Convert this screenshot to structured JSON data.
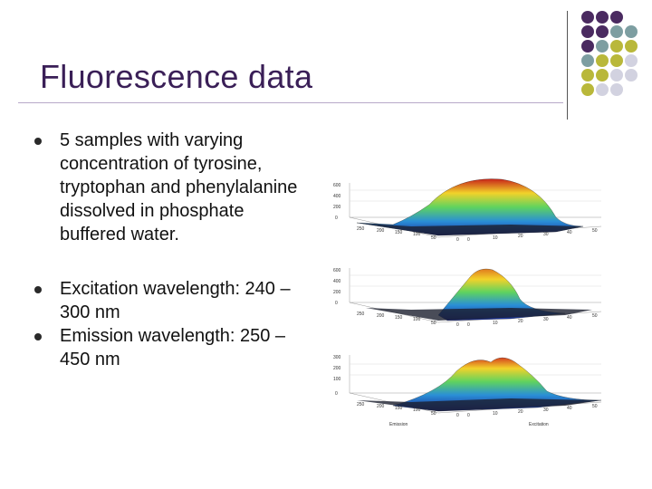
{
  "slide": {
    "title": "Fluorescence data",
    "bullets": [
      "5 samples with varying concentration of tyrosine, tryptophan and phenylalanine dissolved in phosphate buffered water.",
      "Excitation wavelength: 240 – 300 nm",
      "Emission wavelength: 250 – 450 nm"
    ]
  },
  "decor": {
    "dot_colors": [
      "#4a2a60",
      "#7d9ea1",
      "#b9b83a",
      "#d2d2e0"
    ]
  },
  "plots": [
    {
      "z_ticks": [
        "600",
        "400",
        "200",
        "0"
      ],
      "emission_ticks": [
        "250",
        "200",
        "150",
        "100",
        "50",
        "0"
      ],
      "excitation_ticks": [
        "0",
        "10",
        "20",
        "30",
        "40",
        "50"
      ]
    },
    {
      "z_ticks": [
        "600",
        "400",
        "200",
        "0"
      ],
      "emission_ticks": [
        "250",
        "200",
        "150",
        "100",
        "50",
        "0"
      ],
      "excitation_ticks": [
        "0",
        "10",
        "20",
        "30",
        "40",
        "50"
      ]
    },
    {
      "z_ticks": [
        "300",
        "200",
        "100",
        "0"
      ],
      "emission_ticks": [
        "250",
        "200",
        "150",
        "100",
        "50",
        "0"
      ],
      "excitation_ticks": [
        "0",
        "10",
        "20",
        "30",
        "40",
        "50"
      ],
      "emission_label": "Emission",
      "excitation_label": "Excitation"
    }
  ]
}
